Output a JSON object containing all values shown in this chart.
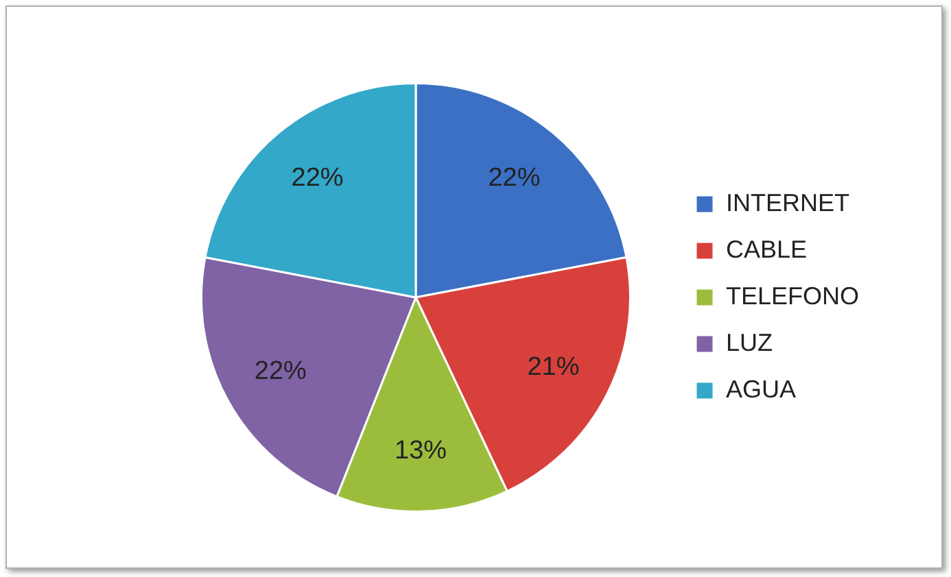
{
  "chart_data": {
    "type": "pie",
    "categories": [
      "INTERNET",
      "CABLE",
      "TELEFONO",
      "LUZ",
      "AGUA"
    ],
    "values": [
      22,
      21,
      13,
      22,
      22
    ],
    "value_labels": [
      "22%",
      "21%",
      "13%",
      "22%",
      "22%"
    ],
    "colors": [
      "#3b70c4",
      "#d8403c",
      "#9cbd3c",
      "#8063a5",
      "#33a8c8"
    ],
    "legend": "right"
  }
}
